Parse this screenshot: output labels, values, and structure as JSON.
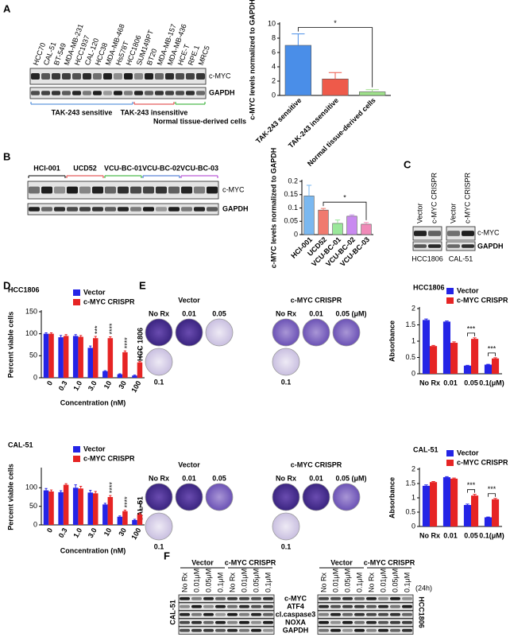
{
  "panel_labels": [
    "A",
    "B",
    "C",
    "D",
    "E",
    "F"
  ],
  "blot_a": {
    "lanes": [
      "HCC70",
      "CAL-51",
      "BT-549",
      "MDA-MB-231",
      "HCC1937",
      "CAL-120",
      "HCC38",
      "MDA-MB-468",
      "Hs578T",
      "HCC1806",
      "SUM149PT",
      "BT20",
      "MDA-MB-157",
      "MDA-MB-436",
      "HCE-T",
      "RPE.1",
      "MRC5"
    ],
    "bands": [
      "c-MYC",
      "GAPDH"
    ],
    "groups": [
      "TAK-243 sensitive",
      "TAK-243 insensitive",
      "Normal tissue-derived cells"
    ]
  },
  "blot_b": {
    "groups": [
      "HCI-001",
      "UCD52",
      "VCU-BC-01",
      "VCU-BC-02",
      "VCU-BC-03"
    ],
    "bands": [
      "c-MYC",
      "GAPDH"
    ]
  },
  "blot_c": {
    "lanes": [
      "Vector",
      "c-MYC CRISPR",
      "Vector",
      "c-MYC CRISPR"
    ],
    "cell_lines": [
      "HCC1806",
      "CAL-51"
    ],
    "bands": [
      "c-MYC",
      "GAPDH"
    ]
  },
  "plates": {
    "conditions": [
      "Vector",
      "c-MYC CRISPR"
    ],
    "doses_vector": [
      "No Rx",
      "0.01",
      "0.05"
    ],
    "doses_crispr": [
      "No Rx",
      "0.01",
      "0.05 (μM)"
    ],
    "extra_dose": "0.1",
    "cell_lines": [
      "HCC 1806",
      "CAL-51"
    ]
  },
  "blot_f": {
    "groups": [
      "Vector",
      "c-MYC CRISPR"
    ],
    "lanes": [
      "No Rx",
      "0.01μM",
      "0.05μM",
      "0.1μM"
    ],
    "bands": [
      "c-MYC",
      "ATF4",
      "cl.caspase3",
      "NOXA",
      "GAPDH"
    ],
    "cell_lines": [
      "CAL-51",
      "HCC1806"
    ],
    "time": "(24h)"
  },
  "chart_data": [
    {
      "type": "bar",
      "ylabel": "c-MYC levels normalized to GAPDH",
      "categories": [
        "TAK-243 sensitive",
        "TAK-243 insensitive",
        "Normal tissue-derived cells"
      ],
      "values": [
        7.0,
        2.3,
        0.5
      ],
      "errors": [
        1.6,
        0.9,
        0.3
      ],
      "colors": [
        "#4a8ee8",
        "#ee5a4a",
        "#9ee08a"
      ],
      "ylim": [
        0,
        10
      ],
      "yticks": [
        0,
        2,
        4,
        6,
        8,
        10
      ],
      "significance": [
        {
          "label": "*",
          "between": [
            "TAK-243 sensitive",
            "Normal tissue-derived cells"
          ]
        }
      ]
    },
    {
      "type": "bar",
      "ylabel": "c-MYC levels normalized to GAPDH",
      "categories": [
        "HCI-001",
        "UCD52",
        "VCU-BC-01",
        "VCU-BC-02",
        "VCU-BC-03"
      ],
      "values": [
        0.145,
        0.092,
        0.042,
        0.069,
        0.039
      ],
      "errors": [
        0.04,
        0.006,
        0.013,
        0.005,
        0.006
      ],
      "colors": [
        "#7ab8f0",
        "#f07a6e",
        "#9ae89a",
        "#c98af0",
        "#f08ab8"
      ],
      "ylim": [
        0,
        0.2
      ],
      "yticks": [
        0,
        0.05,
        0.1,
        0.15,
        0.2
      ],
      "significance": [
        {
          "label": "*",
          "between": [
            "UCD52",
            "VCU-BC-03"
          ]
        }
      ]
    },
    {
      "type": "bar",
      "title": "HCC1806",
      "xlabel": "Concentration (nM)",
      "ylabel": "Percent viable cells",
      "categories": [
        "0",
        "0.3",
        "1.0",
        "3.0",
        "10",
        "30",
        "100"
      ],
      "series": [
        {
          "name": "Vector",
          "color": "#2424e6",
          "values": [
            100,
            92,
            95,
            68,
            15,
            8,
            5
          ],
          "errors": [
            2,
            4,
            3,
            4,
            1,
            1,
            1
          ]
        },
        {
          "name": "c-MYC CRISPR",
          "color": "#e62424",
          "values": [
            100,
            95,
            93,
            90,
            90,
            58,
            35
          ],
          "errors": [
            2,
            3,
            3,
            4,
            3,
            3,
            2
          ]
        }
      ],
      "ylim": [
        0,
        150
      ],
      "yticks": [
        0,
        50,
        100,
        150
      ],
      "legend": "top",
      "significance": [
        null,
        null,
        null,
        "***",
        "****",
        "****",
        "****"
      ]
    },
    {
      "type": "bar",
      "title": "CAL-51",
      "xlabel": "Concentration (nM)",
      "ylabel": "Percent viable cells",
      "categories": [
        "0",
        "0.3",
        "1.0",
        "3.0",
        "10",
        "30",
        "100"
      ],
      "series": [
        {
          "name": "Vector",
          "color": "#2424e6",
          "values": [
            93,
            88,
            100,
            87,
            55,
            22,
            13
          ],
          "errors": [
            5,
            4,
            8,
            6,
            3,
            2,
            2
          ]
        },
        {
          "name": "c-MYC CRISPR",
          "color": "#e62424",
          "values": [
            90,
            108,
            98,
            85,
            75,
            37,
            28
          ],
          "errors": [
            4,
            3,
            6,
            5,
            4,
            3,
            3
          ]
        }
      ],
      "ylim": [
        0,
        150
      ],
      "yticks": [
        0,
        50,
        100
      ],
      "legend": "top",
      "significance": [
        null,
        null,
        null,
        null,
        "****",
        "****",
        "****"
      ]
    },
    {
      "type": "bar",
      "title": "HCC1806",
      "ylabel": "Absorbance",
      "categories": [
        "No Rx",
        "0.01",
        "0.05",
        "0.1(μM)"
      ],
      "series": [
        {
          "name": "Vector",
          "color": "#2424e6",
          "values": [
            1.65,
            1.6,
            0.25,
            0.28
          ],
          "errors": [
            0.03,
            0.02,
            0.01,
            0.01
          ]
        },
        {
          "name": "c-MYC CRISPR",
          "color": "#e62424",
          "values": [
            0.85,
            0.95,
            1.07,
            0.47
          ],
          "errors": [
            0.02,
            0.03,
            0.03,
            0.02
          ]
        }
      ],
      "ylim": [
        0,
        2
      ],
      "yticks": [
        0,
        0.5,
        1,
        1.5,
        2
      ],
      "legend": "top",
      "significance": [
        null,
        null,
        "***",
        "***"
      ]
    },
    {
      "type": "bar",
      "title": "CAL-51",
      "ylabel": "Absorbance",
      "categories": [
        "No Rx",
        "0.01",
        "0.05",
        "0.1(μM)"
      ],
      "series": [
        {
          "name": "Vector",
          "color": "#2424e6",
          "values": [
            1.42,
            1.72,
            0.75,
            0.32
          ],
          "errors": [
            0.03,
            0.02,
            0.03,
            0.01
          ]
        },
        {
          "name": "c-MYC CRISPR",
          "color": "#e62424",
          "values": [
            1.55,
            1.67,
            1.08,
            0.95
          ],
          "errors": [
            0.02,
            0.02,
            0.04,
            0.03
          ]
        }
      ],
      "ylim": [
        0,
        2
      ],
      "yticks": [
        0,
        0.5,
        1,
        1.5,
        2
      ],
      "legend": "top",
      "significance": [
        null,
        null,
        "***",
        "***"
      ]
    }
  ]
}
